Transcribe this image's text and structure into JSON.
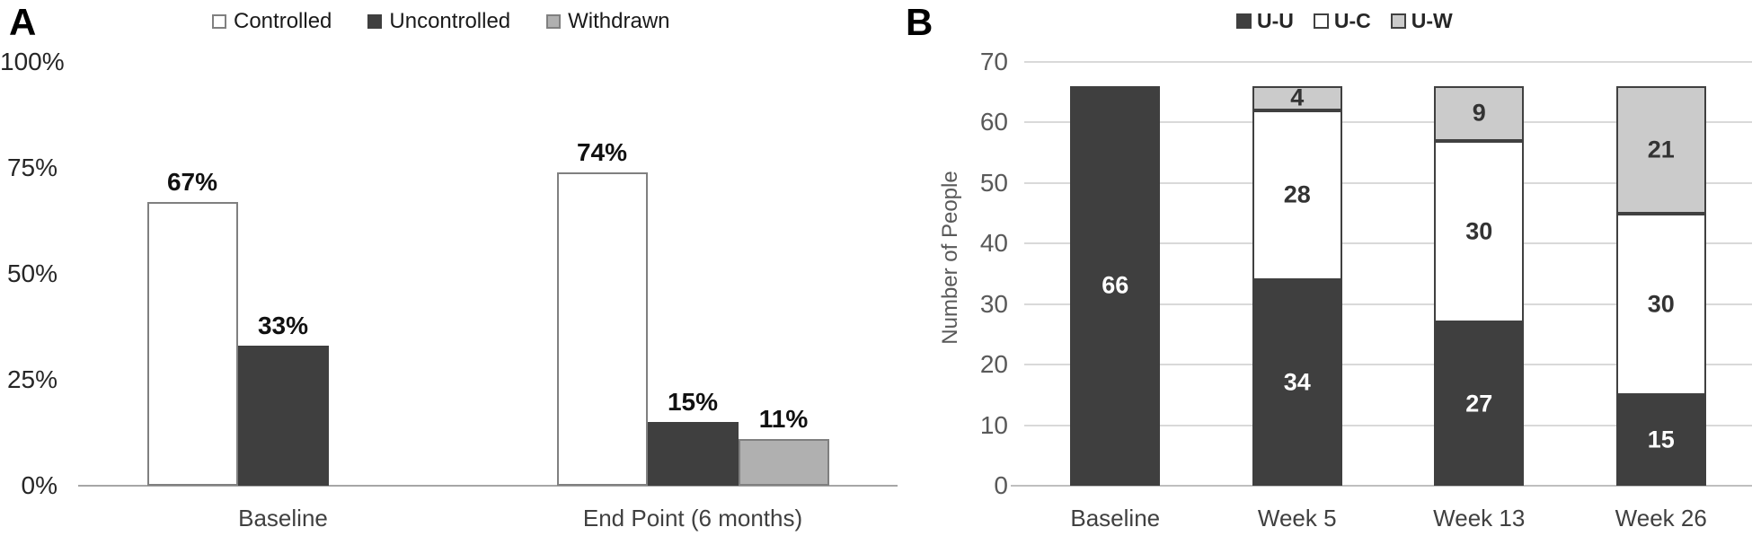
{
  "figure": {
    "background": "#ffffff"
  },
  "chart_data": [
    {
      "panel": "A",
      "type": "bar",
      "categories": [
        "Baseline",
        "End Point (6 months)"
      ],
      "series": [
        {
          "name": "Controlled",
          "fill": "#ffffff",
          "border": "#808080",
          "values": [
            67,
            74
          ]
        },
        {
          "name": "Uncontrolled",
          "fill": "#3f3f3f",
          "border": "#3f3f3f",
          "values": [
            33,
            15
          ]
        },
        {
          "name": "Withdrawn",
          "fill": "#b0b0b0",
          "border": "#808080",
          "values": [
            null,
            11
          ]
        }
      ],
      "value_suffix": "%",
      "xlabel": "",
      "ylabel": "",
      "ylim": [
        0,
        100
      ],
      "yticks": [
        0,
        25,
        50,
        75,
        100
      ],
      "ytick_labels": [
        "0%",
        "25%",
        "50%",
        "75%",
        "100%"
      ],
      "grid": false,
      "legend_position": "top-center",
      "axis_color": "#a6a6a6"
    },
    {
      "panel": "B",
      "type": "stacked-bar",
      "categories": [
        "Baseline",
        "Week 5",
        "Week 13",
        "Week 26"
      ],
      "series": [
        {
          "name": "U-U",
          "fill": "#3f3f3f",
          "border": "#3f3f3f",
          "label_color": "#ffffff",
          "values": [
            66,
            34,
            27,
            15
          ]
        },
        {
          "name": "U-C",
          "fill": "#ffffff",
          "border": "#404040",
          "label_color": "#333333",
          "values": [
            null,
            28,
            30,
            30
          ]
        },
        {
          "name": "U-W",
          "fill": "#cbcbcb",
          "border": "#404040",
          "label_color": "#333333",
          "values": [
            null,
            4,
            9,
            21
          ]
        }
      ],
      "totals": [
        66,
        66,
        66,
        66
      ],
      "xlabel": "",
      "ylabel": "Number of People",
      "ylim": [
        0,
        70
      ],
      "yticks": [
        0,
        10,
        20,
        30,
        40,
        50,
        60,
        70
      ],
      "grid": true,
      "gridline_color": "#d9d9d9",
      "legend_position": "top-right",
      "axis_color": "#bfbfbf"
    }
  ]
}
